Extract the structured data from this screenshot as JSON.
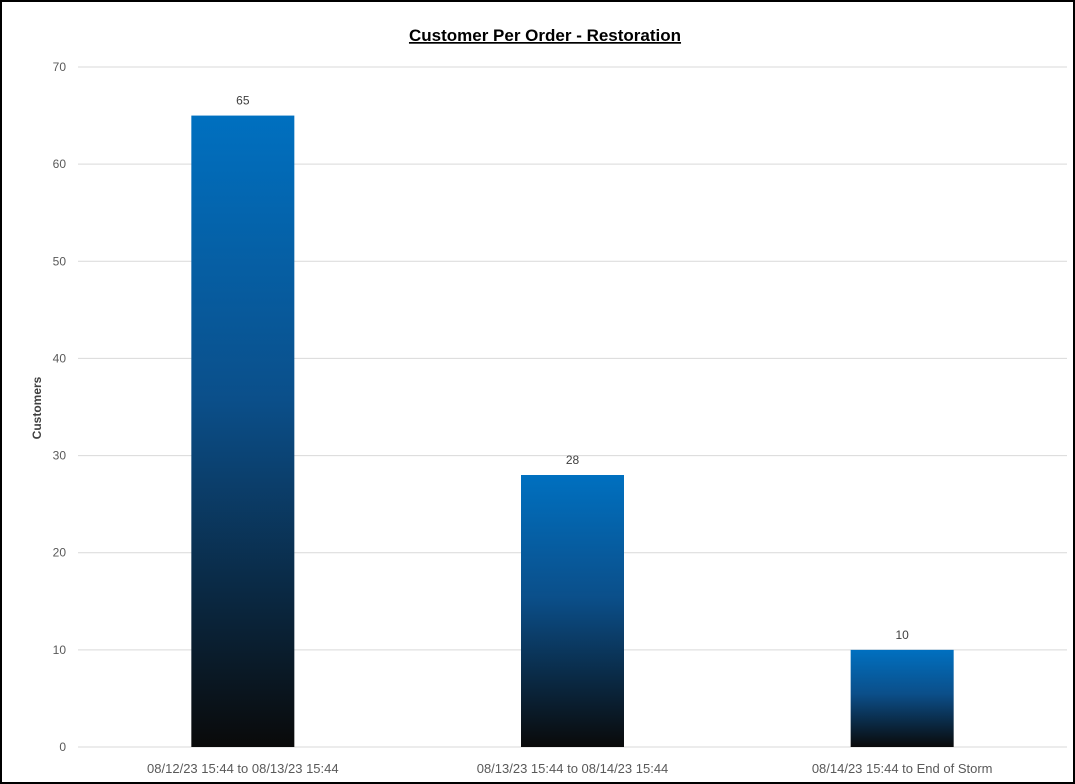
{
  "chart_data": {
    "type": "bar",
    "title": "Customer Per Order - Restoration",
    "xlabel": "",
    "ylabel": "Customers",
    "categories": [
      "08/12/23 15:44 to 08/13/23 15:44",
      "08/13/23 15:44 to 08/14/23 15:44",
      "08/14/23 15:44 to End of Storm"
    ],
    "values": [
      65,
      28,
      10
    ],
    "ylim": [
      0,
      70
    ],
    "yticks": [
      0,
      10,
      20,
      30,
      40,
      50,
      60,
      70
    ],
    "grid": true,
    "legend": "none",
    "colors": {
      "bar_top": "#0070C0",
      "bar_bottom": "#0A0A0A",
      "gridline": "#D9D9D9",
      "frame": "#000000"
    }
  }
}
